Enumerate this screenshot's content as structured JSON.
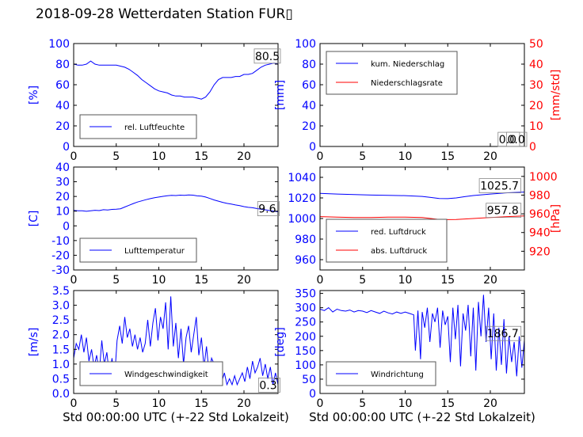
{
  "title": "2018-09-28 Wetterdaten Station FUR▯",
  "colors": {
    "blue": "#0000ff",
    "red": "#ff0000",
    "axis": "#000000",
    "legend_border": "#555555"
  },
  "chart_data": [
    {
      "id": "humidity",
      "type": "line",
      "x_ticks": [
        0,
        5,
        10,
        15,
        20
      ],
      "xlim": [
        0,
        24
      ],
      "ylim": [
        0,
        100
      ],
      "y_ticks": [
        0,
        20,
        40,
        60,
        80,
        100
      ],
      "y_tick_color": "#0000ff",
      "ylabel": "[%]",
      "ylabel_color": "#0000ff",
      "legend": {
        "placement": "lower-left"
      },
      "series": [
        {
          "name": "rel. Luftfeuchte",
          "color": "#0000ff",
          "axis": "left",
          "x": [
            0,
            0.5,
            1,
            1.5,
            2,
            2.5,
            3,
            4,
            5,
            6,
            6.5,
            7,
            7.5,
            8,
            8.5,
            9,
            9.5,
            10,
            10.5,
            11,
            11.5,
            12,
            12.5,
            13,
            13.5,
            14,
            14.5,
            15,
            15.5,
            16,
            16.5,
            17,
            17.5,
            18,
            18.5,
            19,
            19.5,
            20,
            20.5,
            21,
            21.5,
            22,
            22.5,
            23,
            23.5,
            24
          ],
          "y": [
            80,
            79,
            79,
            80,
            83,
            80,
            79,
            79,
            79,
            77,
            75,
            72,
            69,
            65,
            62,
            59,
            56,
            54,
            53,
            52,
            50,
            49,
            49,
            48,
            48,
            48,
            47,
            46,
            48,
            53,
            60,
            65,
            67,
            67,
            67,
            68,
            68,
            70,
            70,
            71,
            74,
            77,
            79,
            80,
            81,
            80.5
          ]
        }
      ],
      "annotations": [
        {
          "text": "80.5",
          "x": 21.3,
          "y": 84
        }
      ]
    },
    {
      "id": "precip",
      "type": "line",
      "x_ticks": [
        0,
        5,
        10,
        15,
        20
      ],
      "xlim": [
        0,
        24
      ],
      "ylim": [
        0,
        100
      ],
      "y_ticks": [
        0,
        20,
        40,
        60,
        80,
        100
      ],
      "y_tick_color": "#0000ff",
      "ylabel": "[mm]",
      "ylabel_color": "#0000ff",
      "ylim_right": [
        0,
        50
      ],
      "y_ticks_right": [
        0,
        10,
        20,
        30,
        40,
        50
      ],
      "y_tick_color_right": "#ff0000",
      "ylabel_right": "[mm/std]",
      "ylabel_right_color": "#ff0000",
      "legend": {
        "placement": "upper-left"
      },
      "series": [
        {
          "name": "kum. Niederschlag",
          "color": "#0000ff",
          "axis": "left",
          "x": [
            0,
            24
          ],
          "y": [
            0,
            0
          ]
        },
        {
          "name": "Niederschlagsrate",
          "color": "#ff0000",
          "axis": "right",
          "x": [
            0,
            24
          ],
          "y": [
            0,
            0
          ]
        }
      ],
      "annotations": [
        {
          "text": "0.0",
          "x": 21.0,
          "y": 3,
          "axis": "left"
        },
        {
          "text": "0.0",
          "x": 22.0,
          "y": 3,
          "axis": "left"
        }
      ]
    },
    {
      "id": "temperature",
      "type": "line",
      "x_ticks": [
        0,
        5,
        10,
        15,
        20
      ],
      "xlim": [
        0,
        24
      ],
      "ylim": [
        -30,
        40
      ],
      "y_ticks": [
        -30,
        -20,
        -10,
        0,
        10,
        20,
        30,
        40
      ],
      "y_tick_color": "#0000ff",
      "ylabel": "[C]",
      "ylabel_color": "#0000ff",
      "legend": {
        "placement": "lower-left"
      },
      "series": [
        {
          "name": "Lufttemperatur",
          "color": "#0000ff",
          "axis": "left",
          "x": [
            0,
            0.5,
            1,
            1.5,
            2,
            2.5,
            3,
            3.5,
            4,
            4.5,
            5,
            5.5,
            6,
            6.5,
            7,
            7.5,
            8,
            8.5,
            9,
            9.5,
            10,
            10.5,
            11,
            11.5,
            12,
            12.5,
            13,
            13.5,
            14,
            14.5,
            15,
            15.5,
            16,
            16.5,
            17,
            17.5,
            18,
            18.5,
            19,
            19.5,
            20,
            20.5,
            21,
            21.5,
            22,
            22.5,
            23,
            23.5,
            24
          ],
          "y": [
            10.5,
            10.2,
            10.3,
            9.9,
            10.3,
            10.6,
            10.4,
            11.0,
            10.8,
            11.2,
            11.3,
            11.6,
            12.8,
            14.0,
            15.2,
            16.2,
            17.0,
            17.8,
            18.5,
            19.1,
            19.6,
            20.1,
            20.5,
            20.7,
            20.6,
            20.9,
            20.8,
            21.0,
            20.9,
            20.4,
            20.2,
            19.6,
            18.6,
            17.6,
            16.8,
            16.0,
            15.3,
            14.8,
            14.2,
            13.7,
            13.1,
            12.6,
            12.3,
            11.8,
            11.3,
            10.9,
            10.4,
            10.0,
            9.6
          ]
        }
      ],
      "annotations": [
        {
          "text": "9.6",
          "x": 21.7,
          "y": 9
        }
      ]
    },
    {
      "id": "pressure",
      "type": "line",
      "x_ticks": [
        0,
        5,
        10,
        15,
        20
      ],
      "xlim": [
        0,
        24
      ],
      "ylim": [
        950,
        1050
      ],
      "y_ticks": [
        960,
        980,
        1000,
        1020,
        1040
      ],
      "y_tick_color": "#0000ff",
      "ylabel": "",
      "ylim_right": [
        900,
        1010
      ],
      "y_ticks_right": [
        920,
        940,
        960,
        980,
        1000
      ],
      "y_tick_color_right": "#ff0000",
      "ylabel_right": "[hPa]",
      "ylabel_right_color": "#ff0000",
      "legend": {
        "placement": "lower-left"
      },
      "series": [
        {
          "name": "red. Luftdruck",
          "color": "#0000ff",
          "axis": "left",
          "x": [
            0,
            2,
            4,
            6,
            8,
            10,
            12,
            13,
            14,
            15,
            16,
            17,
            18,
            20,
            22,
            24
          ],
          "y": [
            1024.5,
            1023.8,
            1023.2,
            1022.8,
            1022.5,
            1022.2,
            1021.5,
            1020.5,
            1019.5,
            1019.3,
            1020.0,
            1021.2,
            1022.3,
            1023.8,
            1025.0,
            1025.7
          ]
        },
        {
          "name": "abs. Luftdruck",
          "color": "#ff0000",
          "axis": "right",
          "x": [
            0,
            2,
            4,
            6,
            8,
            10,
            12,
            13,
            14,
            15,
            16,
            17,
            18,
            20,
            22,
            24
          ],
          "y": [
            957.0,
            956.5,
            956.0,
            956.0,
            956.5,
            956.5,
            956.0,
            955.0,
            954.0,
            953.8,
            954.0,
            954.5,
            955.0,
            956.0,
            957.0,
            957.8
          ]
        }
      ],
      "annotations": [
        {
          "text": "1025.7",
          "x": 18.8,
          "y": 1028,
          "axis": "left"
        },
        {
          "text": "957.8",
          "x": 19.6,
          "y": 959.5,
          "axis": "right"
        }
      ]
    },
    {
      "id": "windspeed",
      "type": "line",
      "x_ticks": [
        0,
        5,
        10,
        15,
        20
      ],
      "xlim": [
        0,
        24
      ],
      "ylim": [
        0,
        3.5
      ],
      "y_ticks": [
        0.0,
        0.5,
        1.0,
        1.5,
        2.0,
        2.5,
        3.0,
        3.5
      ],
      "y_tick_format": 1,
      "y_tick_color": "#0000ff",
      "ylabel": "[m/s]",
      "ylabel_color": "#0000ff",
      "xlabel": "Std 00:00:00 UTC (+-22 Std Lokalzeit)",
      "legend": {
        "placement": "lower-left"
      },
      "series": [
        {
          "name": "Windgeschwindigkeit",
          "color": "#0000ff",
          "axis": "left",
          "x": [
            0,
            0.3,
            0.6,
            0.9,
            1.2,
            1.5,
            1.8,
            2.1,
            2.4,
            2.7,
            3.0,
            3.3,
            3.6,
            3.9,
            4.2,
            4.5,
            4.8,
            5.1,
            5.4,
            5.7,
            6.0,
            6.3,
            6.6,
            6.9,
            7.2,
            7.5,
            7.8,
            8.1,
            8.4,
            8.7,
            9.0,
            9.3,
            9.6,
            9.9,
            10.2,
            10.5,
            10.8,
            11.1,
            11.4,
            11.7,
            12.0,
            12.3,
            12.6,
            12.9,
            13.2,
            13.5,
            13.8,
            14.1,
            14.4,
            14.7,
            15.0,
            15.3,
            15.6,
            15.9,
            16.2,
            16.5,
            16.8,
            17.1,
            17.4,
            17.7,
            18.0,
            18.3,
            18.6,
            18.9,
            19.2,
            19.5,
            19.8,
            20.1,
            20.4,
            20.7,
            21.0,
            21.3,
            21.6,
            21.9,
            22.2,
            22.5,
            22.8,
            23.1,
            23.4,
            23.7,
            24.0
          ],
          "y": [
            1.2,
            1.7,
            1.5,
            2.0,
            1.4,
            1.9,
            1.1,
            1.5,
            0.9,
            1.3,
            0.7,
            1.8,
            1.0,
            1.4,
            0.6,
            1.2,
            0.5,
            1.8,
            2.3,
            1.7,
            2.6,
            1.9,
            2.2,
            1.6,
            2.0,
            1.5,
            1.9,
            1.4,
            1.7,
            2.5,
            1.6,
            2.4,
            2.9,
            1.8,
            2.6,
            2.2,
            3.1,
            1.5,
            3.3,
            1.6,
            2.4,
            1.2,
            2.2,
            1.0,
            1.9,
            2.3,
            1.4,
            2.0,
            2.6,
            1.3,
            1.9,
            0.9,
            1.6,
            0.7,
            1.2,
            1.0,
            0.6,
            0.9,
            0.4,
            0.7,
            0.3,
            0.5,
            0.3,
            0.6,
            0.3,
            0.5,
            0.7,
            0.4,
            0.9,
            0.5,
            1.1,
            0.7,
            0.9,
            1.2,
            0.6,
            1.0,
            0.5,
            0.9,
            0.3,
            0.7,
            0.3
          ]
        }
      ],
      "annotations": [
        {
          "text": "0.3",
          "x": 21.8,
          "y": 0.15
        }
      ]
    },
    {
      "id": "winddir",
      "type": "line",
      "x_ticks": [
        0,
        5,
        10,
        15,
        20
      ],
      "xlim": [
        0,
        24
      ],
      "ylim": [
        0,
        360
      ],
      "y_ticks": [
        0,
        50,
        100,
        150,
        200,
        250,
        300,
        350
      ],
      "y_tick_color": "#0000ff",
      "ylabel": "[deg]",
      "ylabel_color": "#0000ff",
      "xlabel": "Std 00:00:00 UTC (+-22 Std Lokalzeit)",
      "legend": {
        "placement": "lower-left"
      },
      "series": [
        {
          "name": "Windrichtung",
          "color": "#0000ff",
          "axis": "left",
          "x": [
            0,
            0.5,
            1,
            1.5,
            2,
            2.5,
            3,
            3.5,
            4,
            4.5,
            5,
            5.5,
            6,
            6.5,
            7,
            7.5,
            8,
            8.5,
            9,
            9.5,
            10,
            10.5,
            11,
            11.2,
            11.5,
            11.8,
            12,
            12.3,
            12.6,
            12.9,
            13.2,
            13.5,
            13.8,
            14.1,
            14.4,
            14.7,
            15.0,
            15.3,
            15.6,
            15.9,
            16.2,
            16.5,
            16.8,
            17.1,
            17.4,
            17.7,
            18.0,
            18.3,
            18.6,
            18.9,
            19.2,
            19.5,
            19.8,
            20.1,
            20.4,
            20.7,
            21.0,
            21.3,
            21.6,
            21.9,
            22.2,
            22.5,
            22.8,
            23.1,
            23.4,
            23.7,
            24.0
          ],
          "y": [
            295,
            290,
            300,
            285,
            295,
            290,
            288,
            292,
            285,
            290,
            288,
            283,
            290,
            285,
            280,
            288,
            282,
            278,
            285,
            280,
            285,
            280,
            275,
            150,
            290,
            120,
            285,
            230,
            300,
            180,
            280,
            250,
            300,
            160,
            290,
            240,
            270,
            110,
            300,
            190,
            310,
            95,
            280,
            220,
            310,
            130,
            300,
            80,
            320,
            200,
            345,
            180,
            300,
            120,
            280,
            80,
            230,
            100,
            260,
            70,
            200,
            110,
            180,
            60,
            200,
            90,
            186.7
          ]
        }
      ],
      "annotations": [
        {
          "text": "186.7",
          "x": 19.6,
          "y": 196
        }
      ]
    }
  ]
}
